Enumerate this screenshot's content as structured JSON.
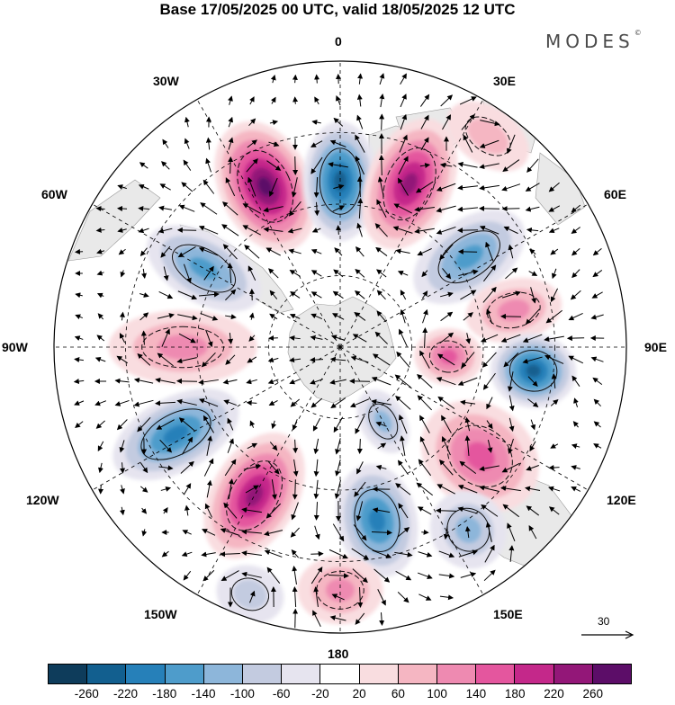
{
  "title": "Base 17/05/2025 00 UTC, valid 18/05/2025 12 UTC",
  "brand": {
    "name": "MODES",
    "mark": "©"
  },
  "longitude_labels": [
    {
      "id": "0",
      "text": "0"
    },
    {
      "id": "30e",
      "text": "30E"
    },
    {
      "id": "60e",
      "text": "60E"
    },
    {
      "id": "90e",
      "text": "90E"
    },
    {
      "id": "120e",
      "text": "120E"
    },
    {
      "id": "150e",
      "text": "150E"
    },
    {
      "id": "180",
      "text": "180"
    },
    {
      "id": "150w",
      "text": "150W"
    },
    {
      "id": "120w",
      "text": "120W"
    },
    {
      "id": "90w",
      "text": "90W"
    },
    {
      "id": "60w",
      "text": "60W"
    },
    {
      "id": "30w",
      "text": "30W"
    }
  ],
  "reference_vector": {
    "label": "30"
  },
  "colorbar": {
    "colors": [
      "#0e3c5b",
      "#125f8f",
      "#2680b9",
      "#4e9ccb",
      "#8db6da",
      "#c3cbe0",
      "#e6e4ef",
      "#ffffff",
      "#f9dde0",
      "#f5b6c2",
      "#ee8ab1",
      "#e4569e",
      "#c4288a",
      "#931778",
      "#5c0d68"
    ],
    "tick_labels": [
      "-260",
      "-220",
      "-180",
      "-140",
      "-100",
      "-60",
      "-20",
      "20",
      "60",
      "100",
      "140",
      "180",
      "220",
      "260"
    ]
  },
  "map": {
    "projection": "south polar stereographic",
    "anomaly_blobs": [
      {
        "lat_pole_dist": 0.62,
        "lon": -25,
        "value": 250,
        "rx": 0.16,
        "ry": 0.24
      },
      {
        "lat_pole_dist": 0.58,
        "lon": 0,
        "value": -200,
        "rx": 0.13,
        "ry": 0.21
      },
      {
        "lat_pole_dist": 0.62,
        "lon": 23,
        "value": 200,
        "rx": 0.15,
        "ry": 0.24
      },
      {
        "lat_pole_dist": 0.55,
        "lon": 55,
        "value": -140,
        "rx": 0.13,
        "ry": 0.22
      },
      {
        "lat_pole_dist": 0.62,
        "lon": 78,
        "value": 80,
        "rx": 0.11,
        "ry": 0.17
      },
      {
        "lat_pole_dist": 0.68,
        "lon": 97,
        "value": -200,
        "rx": 0.13,
        "ry": 0.15
      },
      {
        "lat_pole_dist": 0.38,
        "lon": 95,
        "value": 120,
        "rx": 0.1,
        "ry": 0.12
      },
      {
        "lat_pole_dist": 0.62,
        "lon": 128,
        "value": 130,
        "rx": 0.18,
        "ry": 0.22
      },
      {
        "lat_pole_dist": 0.78,
        "lon": 145,
        "value": -100,
        "rx": 0.13,
        "ry": 0.14
      },
      {
        "lat_pole_dist": 0.62,
        "lon": 168,
        "value": -170,
        "rx": 0.14,
        "ry": 0.2
      },
      {
        "lat_pole_dist": 0.85,
        "lon": 180,
        "value": 80,
        "rx": 0.15,
        "ry": 0.12
      },
      {
        "lat_pole_dist": 0.6,
        "lon": -150,
        "value": 200,
        "rx": 0.15,
        "ry": 0.24
      },
      {
        "lat_pole_dist": 0.65,
        "lon": -118,
        "value": -170,
        "rx": 0.13,
        "ry": 0.24
      },
      {
        "lat_pole_dist": 0.55,
        "lon": -90,
        "value": 110,
        "rx": 0.13,
        "ry": 0.26
      },
      {
        "lat_pole_dist": 0.55,
        "lon": -60,
        "value": -130,
        "rx": 0.12,
        "ry": 0.22
      },
      {
        "lat_pole_dist": 0.92,
        "lon": -160,
        "value": -70,
        "rx": 0.12,
        "ry": 0.1
      },
      {
        "lat_pole_dist": 0.9,
        "lon": 35,
        "value": 60,
        "rx": 0.16,
        "ry": 0.1
      },
      {
        "lat_pole_dist": 0.3,
        "lon": 150,
        "value": -80,
        "rx": 0.08,
        "ry": 0.12
      }
    ]
  }
}
